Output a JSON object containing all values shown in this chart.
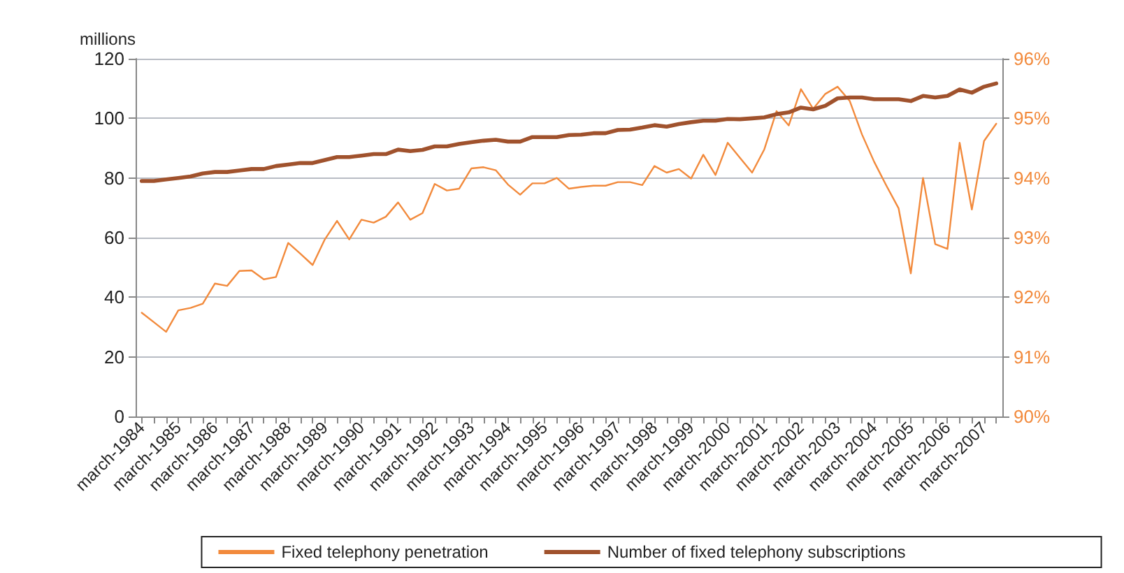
{
  "chart_data": {
    "type": "line",
    "ylabel": "millions",
    "categories": [
      "march-1984",
      null,
      null,
      "march-1985",
      null,
      null,
      "march-1986",
      null,
      null,
      "march-1987",
      null,
      null,
      "march-1988",
      null,
      null,
      "march-1989",
      null,
      null,
      "march-1990",
      null,
      null,
      "march-1991",
      null,
      null,
      "march-1992",
      null,
      null,
      "march-1993",
      null,
      null,
      "march-1994",
      null,
      null,
      "march-1995",
      null,
      null,
      "march-1996",
      null,
      null,
      "march-1997",
      null,
      null,
      "march-1998",
      null,
      null,
      "march-1999",
      null,
      null,
      "march-2000",
      null,
      null,
      "march-2001",
      null,
      null,
      "march-2002",
      null,
      null,
      "march-2003",
      null,
      null,
      "march-2004",
      null,
      null,
      "march-2005",
      null,
      null,
      "march-2006",
      null,
      null,
      "march-2007",
      null
    ],
    "series": [
      {
        "name": "Fixed telephony penetration",
        "color": "#f28a3c",
        "axis": "y2",
        "values": [
          91.74,
          91.58,
          91.42,
          91.78,
          91.82,
          91.89,
          92.23,
          92.19,
          92.44,
          92.45,
          92.3,
          92.34,
          92.91,
          92.73,
          92.54,
          92.97,
          93.28,
          92.97,
          93.3,
          93.25,
          93.35,
          93.59,
          93.3,
          93.41,
          93.9,
          93.79,
          93.82,
          94.16,
          94.18,
          94.13,
          93.89,
          93.72,
          93.91,
          93.91,
          94.0,
          93.82,
          93.85,
          93.87,
          93.87,
          93.93,
          93.93,
          93.88,
          94.2,
          94.09,
          94.15,
          93.99,
          94.39,
          94.05,
          94.59,
          94.34,
          94.09,
          94.48,
          95.12,
          94.88,
          95.49,
          95.16,
          95.41,
          95.53,
          95.29,
          94.73,
          94.27,
          93.87,
          93.49,
          92.4,
          94.0,
          92.89,
          92.81,
          94.59,
          93.47,
          94.62,
          94.91
        ]
      },
      {
        "name": "Number of fixed telephony subscriptions",
        "color": "#a0522d",
        "axis": "y",
        "values": [
          79,
          79,
          79.5,
          80,
          80.5,
          81.5,
          82,
          82,
          82.5,
          83,
          83,
          84,
          84.5,
          85,
          85,
          86,
          87,
          87,
          87.5,
          88,
          88,
          89.5,
          89,
          89.4,
          90.6,
          90.6,
          91.4,
          92,
          92.5,
          92.8,
          92.2,
          92.2,
          93.7,
          93.7,
          93.7,
          94.4,
          94.5,
          95,
          95,
          96.1,
          96.2,
          96.9,
          97.7,
          97.2,
          98.1,
          98.7,
          99.2,
          99.2,
          99.8,
          99.7,
          100,
          100.3,
          101.4,
          102,
          103.6,
          103,
          104.2,
          106.7,
          107,
          107,
          106.4,
          106.4,
          106.4,
          105.8,
          107.5,
          107,
          107.5,
          109.7,
          108.6,
          110.6,
          111.7
        ]
      }
    ],
    "ylim": [
      0,
      120
    ],
    "yticks": [
      0,
      20,
      40,
      60,
      80,
      100,
      120
    ],
    "y2lim": [
      90,
      96
    ],
    "y2ticks": [
      {
        "value": 90,
        "label": "90%"
      },
      {
        "value": 91,
        "label": "91%"
      },
      {
        "value": 92,
        "label": "92%"
      },
      {
        "value": 93,
        "label": "93%"
      },
      {
        "value": 94,
        "label": "94%"
      },
      {
        "value": 95,
        "label": "95%"
      },
      {
        "value": 96,
        "label": "96%"
      }
    ],
    "grid": "y",
    "legend": "bottom",
    "marker": "none",
    "line_style": "solid"
  }
}
